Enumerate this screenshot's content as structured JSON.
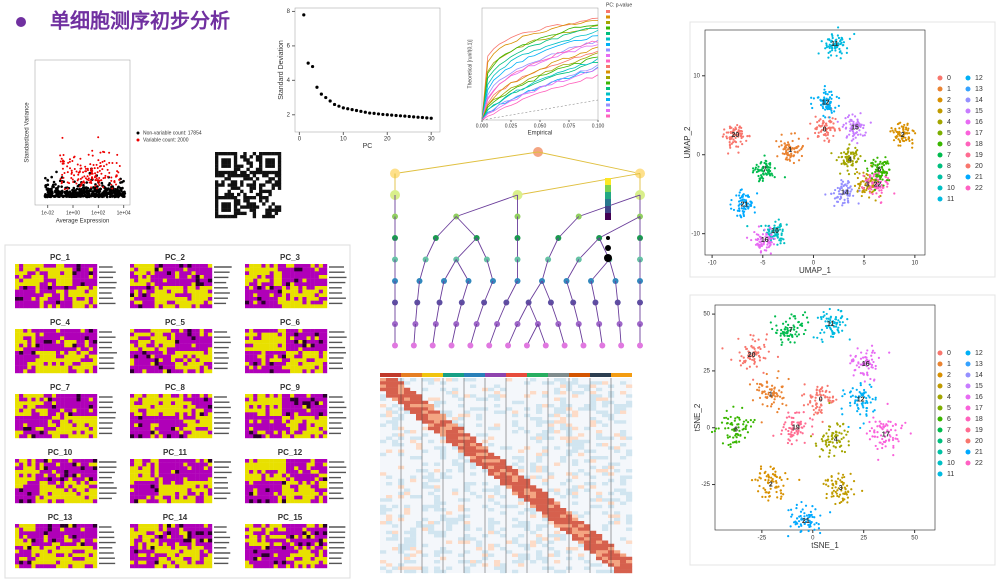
{
  "title": "单细胞测序初步分析",
  "variance": {
    "xlabel": "Average Expression",
    "ylabel": "Standardized Variance",
    "legend": [
      "Non-variable count: 17854",
      "Variable count: 2000"
    ],
    "xticks": [
      {
        "value": -2,
        "label": "1e-02"
      },
      {
        "value": 0,
        "label": "1e+00"
      },
      {
        "value": 2,
        "label": "1e+02"
      },
      {
        "value": 4,
        "label": "1e+04"
      }
    ],
    "xlim": [
      -3,
      4.5
    ]
  },
  "elbow": {
    "xlabel": "PC",
    "ylabel": "Standard Deviation",
    "xlim": [
      -1,
      32
    ],
    "ylim": [
      1,
      8.2
    ],
    "xticks": [
      0,
      10,
      20,
      30
    ],
    "yticks": [
      2,
      4,
      6,
      8
    ],
    "x": [
      1,
      2,
      3,
      4,
      5,
      6,
      7,
      8,
      9,
      10,
      11,
      12,
      13,
      14,
      15,
      16,
      17,
      18,
      19,
      20,
      21,
      22,
      23,
      24,
      25,
      26,
      27,
      28,
      29,
      30
    ],
    "values": [
      7.8,
      5.0,
      4.8,
      3.6,
      3.2,
      3.0,
      2.8,
      2.6,
      2.5,
      2.4,
      2.35,
      2.3,
      2.25,
      2.2,
      2.15,
      2.1,
      2.08,
      2.05,
      2.02,
      2.0,
      1.98,
      1.96,
      1.94,
      1.92,
      1.9,
      1.88,
      1.86,
      1.84,
      1.82,
      1.8
    ]
  },
  "jackstraw": {
    "xlabel": "Empirical",
    "ylabel": "Theoretical [runif(0,1)]",
    "legend_title": "PC: p-value",
    "xlim": [
      0,
      0.1
    ],
    "xticks": [
      {
        "value": 0,
        "label": "0.000"
      },
      {
        "value": 0.025,
        "label": "0.025"
      },
      {
        "value": 0.05,
        "label": "0.050"
      },
      {
        "value": 0.075,
        "label": "0.075"
      },
      {
        "value": 0.1,
        "label": "0.100"
      }
    ]
  },
  "pc_heatmaps": [
    "PC_1",
    "PC_2",
    "PC_3",
    "PC_4",
    "PC_5",
    "PC_6",
    "PC_7",
    "PC_8",
    "PC_9",
    "PC_10",
    "PC_11",
    "PC_12",
    "PC_13",
    "PC_14",
    "PC_15"
  ],
  "clusters": [
    "0",
    "1",
    "2",
    "3",
    "4",
    "5",
    "6",
    "7",
    "8",
    "9",
    "10",
    "11",
    "12",
    "13",
    "14",
    "15",
    "16",
    "17",
    "18",
    "19",
    "20",
    "21",
    "22"
  ],
  "cluster_colors": [
    "#f8766d",
    "#ea8331",
    "#d89000",
    "#c09b00",
    "#a3a500",
    "#7cae00",
    "#39b600",
    "#00bb4e",
    "#00bf7d",
    "#00c1a3",
    "#00bfc4",
    "#00bae0",
    "#00b0f6",
    "#35a2ff",
    "#9590ff",
    "#c77cff",
    "#e76bf3",
    "#fa62db",
    "#ff62bc",
    "#ff6c91",
    "#f8766d",
    "#00a9ff",
    "#ff61c3"
  ],
  "umap": {
    "xlabel": "UMAP_1",
    "ylabel": "UMAP_2",
    "xlim": [
      -10.7,
      11
    ],
    "ylim": [
      -12.7,
      15.8
    ],
    "xticks": [
      -10,
      -5,
      0,
      5,
      10
    ],
    "yticks": [
      -10,
      0,
      10
    ],
    "labels": [
      {
        "text": "0",
        "x": 1.1,
        "y": 3.2
      },
      {
        "text": "1",
        "x": -2.3,
        "y": 0.6
      },
      {
        "text": "2",
        "x": 8.8,
        "y": 2.5
      },
      {
        "text": "3",
        "x": 5.3,
        "y": -3.8
      },
      {
        "text": "22",
        "x": 6.3,
        "y": -3.8
      },
      {
        "text": "4",
        "x": 3.6,
        "y": -0.6
      },
      {
        "text": "6",
        "x": 6.5,
        "y": -1.9
      },
      {
        "text": "7",
        "x": -4.8,
        "y": -1.9
      },
      {
        "text": "10",
        "x": -3.8,
        "y": -9.7
      },
      {
        "text": "11",
        "x": 2.1,
        "y": 14
      },
      {
        "text": "12",
        "x": 1.2,
        "y": 6.6
      },
      {
        "text": "14",
        "x": 3.1,
        "y": -4.8
      },
      {
        "text": "15",
        "x": 4.1,
        "y": 3.4
      },
      {
        "text": "16",
        "x": -4.8,
        "y": -10.8
      },
      {
        "text": "20",
        "x": -7.7,
        "y": 2.5
      },
      {
        "text": "21",
        "x": -6.8,
        "y": -6.3
      }
    ]
  },
  "tsne": {
    "xlabel": "tSNE_1",
    "ylabel": "tSNE_2",
    "xlim": [
      -48,
      60
    ],
    "ylim": [
      -45,
      54
    ],
    "xticks": [
      -25,
      0,
      25,
      50
    ],
    "yticks": [
      -25,
      0,
      25,
      50
    ],
    "labels": [
      {
        "text": "0",
        "x": 3.9,
        "y": 12.4
      },
      {
        "text": "1",
        "x": -20.6,
        "y": 14.6
      },
      {
        "text": "2",
        "x": -20.6,
        "y": -25
      },
      {
        "text": "3",
        "x": 13.7,
        "y": -26.5
      },
      {
        "text": "4",
        "x": 11.3,
        "y": -5.3
      },
      {
        "text": "6",
        "x": -37.7,
        "y": -0.9
      },
      {
        "text": "7",
        "x": -10.8,
        "y": 43
      },
      {
        "text": "11",
        "x": 8.8,
        "y": 45.6
      },
      {
        "text": "12",
        "x": 23.5,
        "y": 12.4
      },
      {
        "text": "16",
        "x": 26,
        "y": 28
      },
      {
        "text": "17",
        "x": 35.8,
        "y": -3
      },
      {
        "text": "19",
        "x": -8.3,
        "y": 0
      },
      {
        "text": "20",
        "x": -30,
        "y": 32
      },
      {
        "text": "21",
        "x": -3.4,
        "y": -41
      }
    ]
  }
}
